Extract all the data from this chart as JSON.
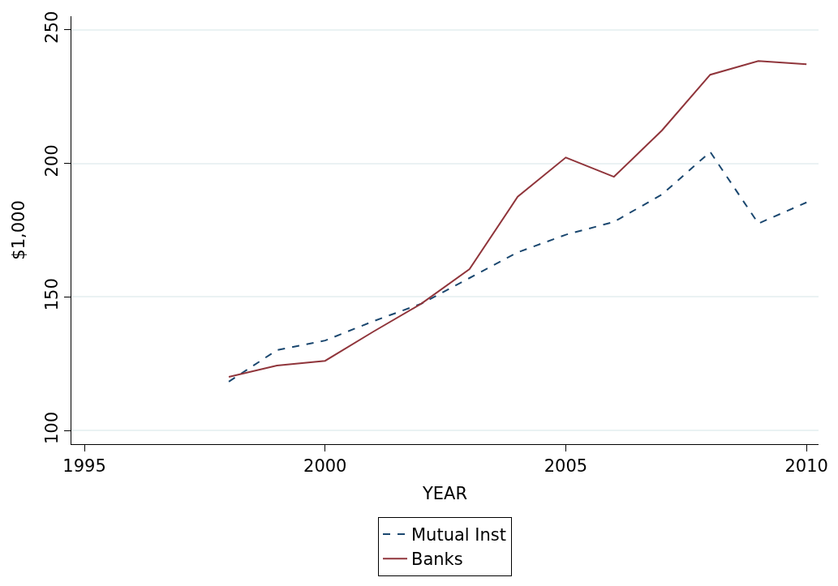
{
  "chart_data": {
    "type": "line",
    "xlabel": "YEAR",
    "ylabel": "$1,000",
    "x": [
      1998,
      1999,
      2000,
      2001,
      2002,
      2003,
      2004,
      2005,
      2006,
      2007,
      2008,
      2009,
      2010
    ],
    "series": [
      {
        "name": "Mutual Inst",
        "color": "#1a476f",
        "line_style": "dashed",
        "values": [
          118.3,
          130.1,
          133.7,
          140.9,
          147.5,
          157.1,
          166.7,
          173.3,
          178.1,
          188.4,
          204.3,
          177.5,
          185.4
        ]
      },
      {
        "name": "Banks",
        "color": "#90353b",
        "line_style": "solid",
        "values": [
          120.1,
          124.3,
          126.1,
          137,
          147.5,
          160.4,
          187.5,
          202.2,
          195,
          212.4,
          233.2,
          238.3,
          237.1
        ]
      }
    ],
    "xlim": [
      1994.73,
      2010.25
    ],
    "xticks": [
      1995,
      2000,
      2005,
      2010
    ],
    "ylim": [
      94.9,
      255.1
    ],
    "yticks": [
      100,
      150,
      200,
      250
    ],
    "grid": "y",
    "legend": "bottom",
    "marker": "none"
  }
}
